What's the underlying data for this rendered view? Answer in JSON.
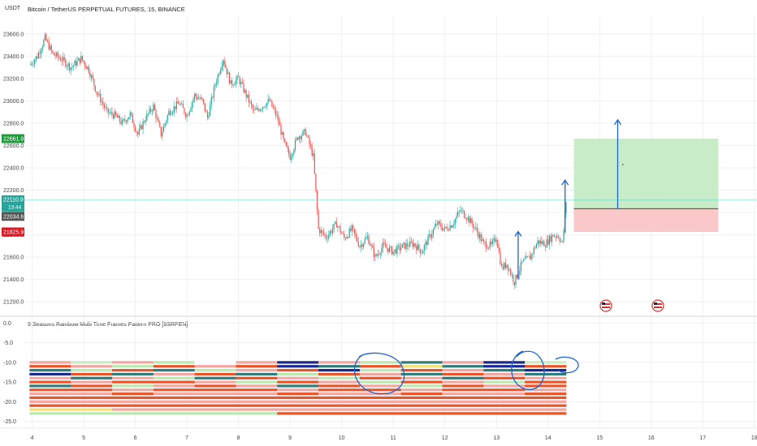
{
  "header": {
    "currency": "USDT",
    "title": "Bitcoin / TetherUS PERPETUAL FUTURES, 15, BINANCE"
  },
  "price_badges": [
    {
      "id": "target",
      "text": "22661.9",
      "color": "#1e9c3c"
    },
    {
      "id": "last",
      "text": "22110.9",
      "sub": "13:44",
      "color": "#26a69a"
    },
    {
      "id": "entry",
      "text": "22034.6",
      "color": "#555555"
    },
    {
      "id": "stop",
      "text": "21825.9",
      "color": "#e0141e"
    }
  ],
  "indicator": {
    "title": "9 Seasons Rainbow Multi Time Frames Pattern PRO [9SRPEN]"
  },
  "chart_data": [
    {
      "type": "candlestick",
      "title": "Bitcoin / TetherUS PERPETUAL FUTURES, 15, BINANCE",
      "ylabel": "USDT",
      "ylim": [
        21100,
        23700
      ],
      "yticks": [
        "23600.0",
        "23400.0",
        "23200.0",
        "23000.0",
        "22800.0",
        "22600.0",
        "22400.0",
        "22200.0",
        "22000.0",
        "21800.0",
        "21600.0",
        "21400.0",
        "21200.0"
      ],
      "xticks": [
        "4",
        "5",
        "6",
        "7",
        "8",
        "9",
        "10",
        "11",
        "12",
        "13",
        "14",
        "15",
        "16",
        "17",
        "18"
      ],
      "price_path": [
        [
          3.95,
          23320
        ],
        [
          4.1,
          23400
        ],
        [
          4.25,
          23560
        ],
        [
          4.4,
          23420
        ],
        [
          4.55,
          23380
        ],
        [
          4.75,
          23300
        ],
        [
          4.95,
          23380
        ],
        [
          5.1,
          23280
        ],
        [
          5.25,
          23080
        ],
        [
          5.45,
          22900
        ],
        [
          5.6,
          22870
        ],
        [
          5.75,
          22800
        ],
        [
          5.9,
          22880
        ],
        [
          6.05,
          22700
        ],
        [
          6.2,
          22850
        ],
        [
          6.35,
          22950
        ],
        [
          6.5,
          22700
        ],
        [
          6.65,
          22900
        ],
        [
          6.85,
          22980
        ],
        [
          7.0,
          22870
        ],
        [
          7.15,
          23050
        ],
        [
          7.3,
          23000
        ],
        [
          7.4,
          22850
        ],
        [
          7.55,
          23150
        ],
        [
          7.7,
          23380
        ],
        [
          7.85,
          23150
        ],
        [
          8.0,
          23200
        ],
        [
          8.15,
          23050
        ],
        [
          8.3,
          22900
        ],
        [
          8.45,
          22950
        ],
        [
          8.6,
          23000
        ],
        [
          8.75,
          22850
        ],
        [
          8.9,
          22600
        ],
        [
          9.0,
          22500
        ],
        [
          9.15,
          22680
        ],
        [
          9.3,
          22720
        ],
        [
          9.45,
          22500
        ],
        [
          9.55,
          21850
        ],
        [
          9.7,
          21780
        ],
        [
          9.9,
          21900
        ],
        [
          10.05,
          21770
        ],
        [
          10.2,
          21850
        ],
        [
          10.35,
          21700
        ],
        [
          10.5,
          21780
        ],
        [
          10.65,
          21600
        ],
        [
          10.8,
          21700
        ],
        [
          11.0,
          21650
        ],
        [
          11.2,
          21700
        ],
        [
          11.4,
          21720
        ],
        [
          11.55,
          21650
        ],
        [
          11.7,
          21780
        ],
        [
          11.85,
          21900
        ],
        [
          12.0,
          21850
        ],
        [
          12.15,
          21900
        ],
        [
          12.3,
          22020
        ],
        [
          12.45,
          21950
        ],
        [
          12.6,
          21850
        ],
        [
          12.75,
          21720
        ],
        [
          12.9,
          21700
        ],
        [
          13.0,
          21780
        ],
        [
          13.1,
          21500
        ],
        [
          13.2,
          21540
        ],
        [
          13.35,
          21380
        ],
        [
          13.5,
          21550
        ],
        [
          13.65,
          21600
        ],
        [
          13.8,
          21740
        ],
        [
          13.95,
          21720
        ],
        [
          14.1,
          21800
        ],
        [
          14.2,
          21790
        ],
        [
          14.28,
          21720
        ],
        [
          14.35,
          22100
        ]
      ],
      "position": {
        "x_start": 14.5,
        "x_end": 17.3,
        "entry": 22034.6,
        "target": 22661.9,
        "stop": 21825.9
      },
      "current_price": 22110.9
    },
    {
      "type": "heatmap",
      "title": "9 Seasons Rainbow Multi Time Frames Pattern PRO [9SRPEN]",
      "ylim": [
        -25.5,
        0.5
      ],
      "yticks": [
        "0.0",
        "-5.0",
        "-10.0",
        "-15.0",
        "-20.0",
        "-25.0"
      ],
      "x_range": [
        3.95,
        14.35
      ],
      "rows": [
        {
          "y": -10,
          "colors": [
            "#f4a6a0",
            "#c8ecc0",
            "#f4a6a0",
            "#b9e9b0",
            "#ffffff",
            "#f4a6a0",
            "#1b2a8a",
            "#f4a6a0",
            "#b9e9b0",
            "#2e7d7a",
            "#f4a6a0",
            "#1b2a8a",
            "#c8ecc0"
          ]
        },
        {
          "y": -11,
          "colors": [
            "#e8552b",
            "#f4a6a0",
            "#b9e9b0",
            "#e8552b",
            "#f4a6a0",
            "#e8552b",
            "#1b2a8a",
            "#2e7d7a",
            "#e8552b",
            "#f4e07a",
            "#2e7d7a",
            "#1b2a8a",
            "#e8552b"
          ]
        },
        {
          "y": -12,
          "colors": [
            "#2e7d7a",
            "#b9e9b0",
            "#e8552b",
            "#2e7d7a",
            "#b9e9b0",
            "#f4a6a0",
            "#e8552b",
            "#1b2a8a",
            "#b9e9b0",
            "#e8552b",
            "#f4a6a0",
            "#2e7d7a",
            "#1b2a8a"
          ]
        },
        {
          "y": -13,
          "colors": [
            "#1b2a8a",
            "#e8552b",
            "#2e7d7a",
            "#f4a6a0",
            "#e8552b",
            "#2e7d7a",
            "#b9e9b0",
            "#e8552b",
            "#f4a6a0",
            "#2e7d7a",
            "#e8552b",
            "#f4a6a0",
            "#2e7d7a"
          ]
        },
        {
          "y": -14,
          "colors": [
            "#f4a6a0",
            "#2e7d7a",
            "#f4a6a0",
            "#b9e9b0",
            "#2e7d7a",
            "#e8552b",
            "#f4a6a0",
            "#b9e9b0",
            "#e8552b",
            "#f4a6a0",
            "#2e7d7a",
            "#e8552b",
            "#f4a6a0"
          ]
        },
        {
          "y": -15,
          "colors": [
            "#e8552b",
            "#f4a6a0",
            "#e8552b",
            "#e8552b",
            "#f4a6a0",
            "#b9e9b0",
            "#e8552b",
            "#f4a6a0",
            "#b9e9b0",
            "#e8552b",
            "#f4a6a0",
            "#b9e9b0",
            "#e8552b"
          ]
        },
        {
          "y": -16,
          "colors": [
            "#2e7d7a",
            "#e8552b",
            "#b9e9b0",
            "#f4a6a0",
            "#e8552b",
            "#f4a6a0",
            "#2e7d7a",
            "#e8552b",
            "#f4a6a0",
            "#b9e9b0",
            "#e8552b",
            "#f4a6a0",
            "#e8552b"
          ]
        },
        {
          "y": -17,
          "colors": [
            "#e8552b",
            "#e8552b",
            "#f4a6a0",
            "#e8552b",
            "#e8552b",
            "#e8552b",
            "#f4a6a0",
            "#e8552b",
            "#e8552b",
            "#f4a6a0",
            "#e8552b",
            "#e8552b",
            "#f4a6a0"
          ]
        },
        {
          "y": -18,
          "colors": [
            "#f4a6a0",
            "#f4a6a0",
            "#e8552b",
            "#f4a6a0",
            "#f4a6a0",
            "#f4a6a0",
            "#e8552b",
            "#f4a6a0",
            "#f4a6a0",
            "#e8552b",
            "#f4a6a0",
            "#f4a6a0",
            "#e8552b"
          ]
        },
        {
          "y": -19,
          "colors": [
            "#e8552b",
            "#e8552b",
            "#e8552b",
            "#e8552b",
            "#e8552b",
            "#e8552b",
            "#e8552b",
            "#e8552b",
            "#e8552b",
            "#e8552b",
            "#e8552b",
            "#e8552b",
            "#e8552b"
          ]
        },
        {
          "y": -20,
          "colors": [
            "#f4a6a0",
            "#f4a6a0",
            "#f4a6a0",
            "#f4a6a0",
            "#f4a6a0",
            "#f4a6a0",
            "#f4a6a0",
            "#f4a6a0",
            "#f4a6a0",
            "#f4a6a0",
            "#f4a6a0",
            "#f4a6a0",
            "#f4a6a0"
          ]
        },
        {
          "y": -21,
          "colors": [
            "#e8552b",
            "#e8552b",
            "#e8552b",
            "#e8552b",
            "#e8552b",
            "#e8552b",
            "#e8552b",
            "#e8552b",
            "#e8552b",
            "#e8552b",
            "#e8552b",
            "#e8552b",
            "#e8552b"
          ]
        },
        {
          "y": -22,
          "colors": [
            "#f4e07a",
            "#f4e07a",
            "#f4a6a0",
            "#f4a6a0",
            "#f4a6a0",
            "#f4a6a0",
            "#f4a6a0",
            "#f4a6a0",
            "#f4a6a0",
            "#f4a6a0",
            "#f4a6a0",
            "#f4a6a0",
            "#f4a6a0"
          ]
        },
        {
          "y": -23,
          "colors": [
            "#b9e9b0",
            "#b9e9b0",
            "#b9e9b0",
            "#b9e9b0",
            "#b9e9b0",
            "#b9e9b0",
            "#e8552b",
            "#e8552b",
            "#e8552b",
            "#e8552b",
            "#e8552b",
            "#e8552b",
            "#e8552b"
          ]
        }
      ]
    }
  ],
  "colors": {
    "bull": "#26a69a",
    "bear": "#ef5350",
    "grid": "#eef0f3",
    "annotation": "#1e64d2",
    "target_zone": "#c8ecc8",
    "stop_zone": "#fac8c8"
  }
}
